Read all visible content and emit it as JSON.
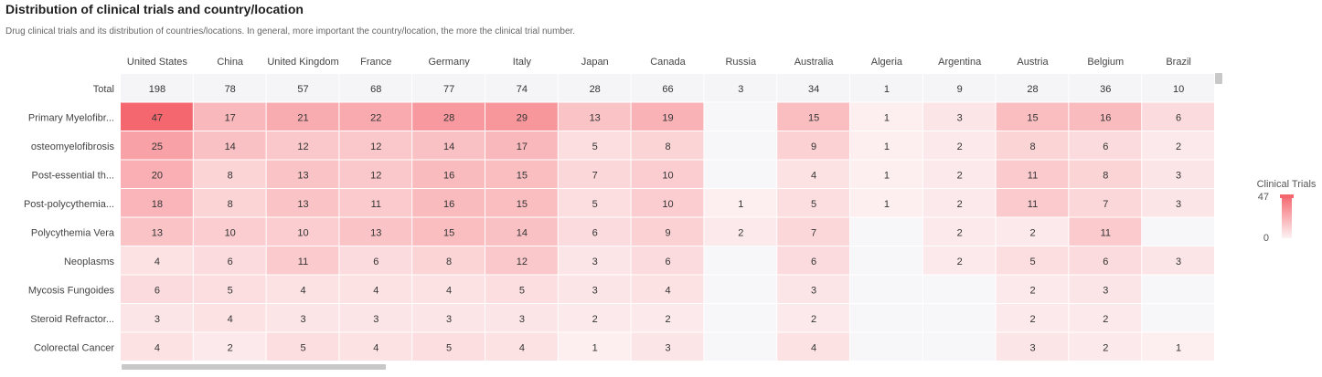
{
  "header": {
    "title": "Distribution of clinical trials and country/location",
    "subtitle": "Drug clinical trials and its distribution of countries/locations. In general, more important the country/location, the more the clinical trial number."
  },
  "legend": {
    "title": "Clinical Trials",
    "max_label": "47",
    "min_label": "0",
    "color_max": "#f4676e",
    "color_min": "#fdf3f4"
  },
  "chart_data": {
    "type": "heatmap",
    "columns": [
      "United States",
      "China",
      "United Kingdom",
      "France",
      "Germany",
      "Italy",
      "Japan",
      "Canada",
      "Russia",
      "Australia",
      "Algeria",
      "Argentina",
      "Austria",
      "Belgium",
      "Brazil"
    ],
    "total_row": {
      "label": "Total",
      "values": [
        198,
        78,
        57,
        68,
        77,
        74,
        28,
        66,
        3,
        34,
        1,
        9,
        28,
        36,
        10
      ]
    },
    "rows": [
      {
        "label": "Primary Myelofibr...",
        "values": [
          47,
          17,
          21,
          22,
          28,
          29,
          13,
          19,
          null,
          15,
          1,
          3,
          15,
          16,
          6
        ]
      },
      {
        "label": "osteomyelofibrosis",
        "values": [
          25,
          14,
          12,
          12,
          14,
          17,
          5,
          8,
          null,
          9,
          1,
          2,
          8,
          6,
          2
        ]
      },
      {
        "label": "Post-essential th...",
        "values": [
          20,
          8,
          13,
          12,
          16,
          15,
          7,
          10,
          null,
          4,
          1,
          2,
          11,
          8,
          3
        ]
      },
      {
        "label": "Post-polycythemia...",
        "values": [
          18,
          8,
          13,
          11,
          16,
          15,
          5,
          10,
          1,
          5,
          1,
          2,
          11,
          7,
          3
        ]
      },
      {
        "label": "Polycythemia Vera",
        "values": [
          13,
          10,
          10,
          13,
          15,
          14,
          6,
          9,
          2,
          7,
          null,
          2,
          2,
          11,
          null
        ]
      },
      {
        "label": "Neoplasms",
        "values": [
          4,
          6,
          11,
          6,
          8,
          12,
          3,
          6,
          null,
          6,
          null,
          2,
          5,
          6,
          3
        ]
      },
      {
        "label": "Mycosis Fungoides",
        "values": [
          6,
          5,
          4,
          4,
          4,
          5,
          3,
          4,
          null,
          3,
          null,
          null,
          2,
          3,
          null
        ]
      },
      {
        "label": "Steroid Refractor...",
        "values": [
          3,
          4,
          3,
          3,
          3,
          3,
          2,
          2,
          null,
          2,
          null,
          null,
          2,
          2,
          null
        ]
      },
      {
        "label": "Colorectal Cancer",
        "values": [
          4,
          2,
          5,
          4,
          5,
          4,
          1,
          3,
          null,
          4,
          null,
          null,
          3,
          2,
          1
        ]
      }
    ],
    "color_range": [
      0,
      47
    ]
  }
}
